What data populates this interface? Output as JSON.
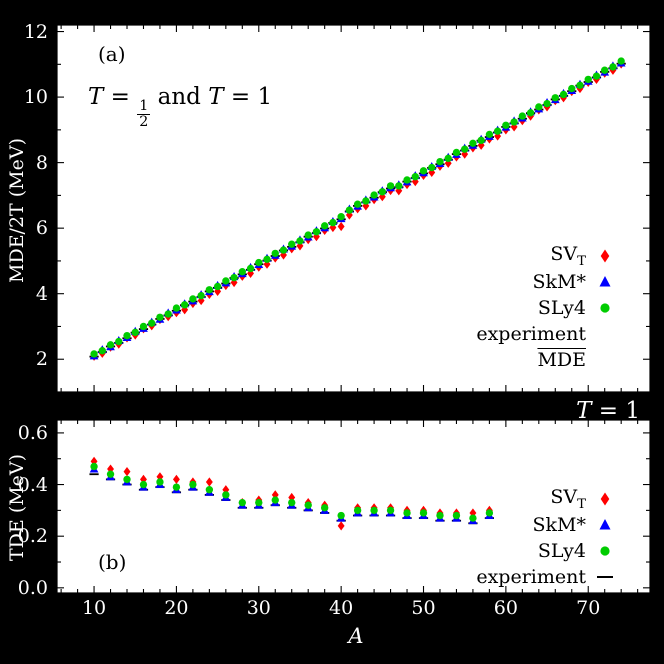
{
  "figure": {
    "panel_a_tag": "(a)",
    "panel_b_tag": "(b)",
    "title_a": {
      "t": "T",
      "eq": "=",
      "num": "1",
      "den": "2",
      "and": "and",
      "one": "1"
    },
    "title_b": {
      "t": "T",
      "rest": " = 1"
    },
    "ylabel_a": "MDE/2T (MeV)",
    "ylabel_b": "TDE (MeV)",
    "xlabel": "A",
    "colors": {
      "svt": "#ff0000",
      "skm": "#0000ff",
      "sly4": "#00cc00",
      "experiment": "#000000",
      "background": "#000000",
      "panel": "#ffffff"
    },
    "legend_a": {
      "items": [
        {
          "text": "SV",
          "sub": "T",
          "marker": "diamond",
          "color": "#ff0000"
        },
        {
          "text": "SkM*",
          "marker": "triangle",
          "color": "#0000ff"
        },
        {
          "text": "SLy4",
          "marker": "circle",
          "color": "#00cc00"
        },
        {
          "text": "experiment",
          "marker": "none"
        },
        {
          "text": "MDE",
          "overline": true,
          "marker": "none"
        }
      ]
    },
    "legend_b": {
      "items": [
        {
          "text": "SV",
          "sub": "T",
          "marker": "diamond",
          "color": "#ff0000"
        },
        {
          "text": "SkM*",
          "marker": "triangle",
          "color": "#0000ff"
        },
        {
          "text": "SLy4",
          "marker": "circle",
          "color": "#00cc00"
        },
        {
          "text": "experiment",
          "marker": "hline",
          "color": "#000000"
        }
      ]
    }
  },
  "chart_data": [
    {
      "type": "scatter",
      "title": "T = 1/2 and T = 1",
      "xlabel": "A",
      "ylabel": "MDE/2T (MeV)",
      "xlim": [
        5.5,
        77.5
      ],
      "ylim": [
        1.0,
        12.2
      ],
      "xticks": [
        10,
        20,
        30,
        40,
        50,
        60,
        70
      ],
      "xtick_labels": [],
      "xminor": [
        6,
        8,
        12,
        14,
        16,
        18,
        22,
        24,
        26,
        28,
        32,
        34,
        36,
        38,
        42,
        44,
        46,
        48,
        52,
        54,
        56,
        58,
        62,
        64,
        66,
        68,
        72,
        74,
        76
      ],
      "yticks": [
        2,
        4,
        6,
        8,
        10,
        12
      ],
      "ytick_labels": [
        "2",
        "4",
        "6",
        "8",
        "10",
        "12"
      ],
      "yminor": [
        3,
        5,
        7,
        9,
        11
      ],
      "x": [
        10,
        11,
        12,
        13,
        14,
        15,
        16,
        17,
        18,
        19,
        20,
        21,
        22,
        23,
        24,
        25,
        26,
        27,
        28,
        29,
        30,
        31,
        32,
        33,
        34,
        35,
        36,
        37,
        38,
        39,
        40,
        41,
        42,
        43,
        44,
        45,
        46,
        47,
        48,
        49,
        50,
        51,
        52,
        53,
        54,
        55,
        56,
        57,
        58,
        59,
        60,
        61,
        62,
        63,
        64,
        65,
        66,
        67,
        68,
        69,
        70,
        71,
        72,
        73,
        74
      ],
      "series": [
        {
          "name": "SV_T",
          "marker": "diamond",
          "color": "#ff0000",
          "values": [
            2.09,
            2.18,
            2.37,
            2.46,
            2.65,
            2.74,
            2.93,
            3.02,
            3.21,
            3.3,
            3.42,
            3.51,
            3.7,
            3.79,
            3.98,
            4.07,
            4.25,
            4.34,
            4.53,
            4.62,
            4.81,
            4.9,
            5.09,
            5.18,
            5.37,
            5.46,
            5.65,
            5.74,
            5.93,
            6.02,
            6.05,
            6.4,
            6.59,
            6.68,
            6.87,
            6.96,
            7.15,
            7.14,
            7.33,
            7.42,
            7.61,
            7.7,
            7.89,
            7.98,
            8.17,
            8.26,
            8.45,
            8.53,
            8.72,
            8.81,
            9.0,
            9.09,
            9.28,
            9.42,
            9.61,
            9.7,
            9.89,
            9.98,
            10.17,
            10.26,
            10.45,
            10.54,
            10.73,
            10.82,
            11.01
          ]
        },
        {
          "name": "SkM*",
          "marker": "triangle",
          "color": "#0000ff",
          "values": [
            2.1,
            2.29,
            2.38,
            2.57,
            2.66,
            2.85,
            2.94,
            3.13,
            3.22,
            3.41,
            3.5,
            3.69,
            3.78,
            3.97,
            4.06,
            4.25,
            4.33,
            4.52,
            4.61,
            4.8,
            4.89,
            5.08,
            5.17,
            5.36,
            5.45,
            5.64,
            5.73,
            5.92,
            6.01,
            6.2,
            6.29,
            6.58,
            6.67,
            6.86,
            6.95,
            7.14,
            7.23,
            7.32,
            7.41,
            7.6,
            7.69,
            7.88,
            7.97,
            8.16,
            8.25,
            8.44,
            8.53,
            8.71,
            8.8,
            8.99,
            9.08,
            9.27,
            9.36,
            9.55,
            9.64,
            9.83,
            9.92,
            10.11,
            10.2,
            10.39,
            10.48,
            10.67,
            10.76,
            10.95,
            11.04
          ]
        },
        {
          "name": "SLy4",
          "marker": "circle",
          "color": "#00cc00",
          "values": [
            2.16,
            2.26,
            2.44,
            2.54,
            2.72,
            2.82,
            3.0,
            3.1,
            3.28,
            3.38,
            3.56,
            3.66,
            3.84,
            3.94,
            4.12,
            4.22,
            4.39,
            4.49,
            4.67,
            4.77,
            4.95,
            5.05,
            5.23,
            5.33,
            5.51,
            5.61,
            5.79,
            5.89,
            6.07,
            6.17,
            6.35,
            6.55,
            6.73,
            6.83,
            7.01,
            7.11,
            7.29,
            7.29,
            7.47,
            7.57,
            7.75,
            7.85,
            8.03,
            8.13,
            8.31,
            8.41,
            8.59,
            8.68,
            8.86,
            8.96,
            9.14,
            9.24,
            9.42,
            9.52,
            9.7,
            9.8,
            9.98,
            10.08,
            10.26,
            10.36,
            10.54,
            10.64,
            10.82,
            10.92,
            11.1
          ]
        },
        {
          "name": "experiment",
          "marker": "hline",
          "color": "#000000",
          "values": [
            2.08,
            2.22,
            2.39,
            2.5,
            2.64,
            2.81,
            2.92,
            3.06,
            3.23,
            3.34,
            3.48,
            3.65,
            3.76,
            3.9,
            4.07,
            4.18,
            4.31,
            4.48,
            4.59,
            4.73,
            4.9,
            5.01,
            5.15,
            5.32,
            5.43,
            5.57,
            5.74,
            5.85,
            5.99,
            6.16,
            6.27,
            6.51,
            6.68,
            6.79,
            6.93,
            7.1,
            7.21,
            7.25,
            7.42,
            7.53,
            7.67,
            7.84,
            7.95,
            8.09,
            8.26,
            8.37,
            8.51,
            8.67,
            8.78,
            8.92,
            9.09,
            9.2,
            9.34,
            9.51,
            9.62,
            9.76,
            9.93,
            10.04,
            10.18,
            10.35,
            10.46,
            10.6,
            10.77,
            10.88,
            11.02
          ]
        }
      ]
    },
    {
      "type": "scatter",
      "title": "T = 1",
      "xlabel": "A",
      "ylabel": "TDE (MeV)",
      "xlim": [
        5.5,
        77.5
      ],
      "ylim": [
        -0.02,
        0.65
      ],
      "xticks": [
        10,
        20,
        30,
        40,
        50,
        60,
        70
      ],
      "xtick_labels": [
        "10",
        "20",
        "30",
        "40",
        "50",
        "60",
        "70"
      ],
      "xminor": [
        6,
        8,
        12,
        14,
        16,
        18,
        22,
        24,
        26,
        28,
        32,
        34,
        36,
        38,
        42,
        44,
        46,
        48,
        52,
        54,
        56,
        58,
        62,
        64,
        66,
        68,
        72,
        74,
        76
      ],
      "yticks": [
        0.0,
        0.2,
        0.4,
        0.6
      ],
      "ytick_labels": [
        "0.0",
        "0.2",
        "0.4",
        "0.6"
      ],
      "yminor": [
        0.1,
        0.3,
        0.5
      ],
      "x": [
        10,
        12,
        14,
        16,
        18,
        20,
        22,
        24,
        26,
        28,
        30,
        32,
        34,
        36,
        38,
        40,
        42,
        44,
        46,
        48,
        50,
        52,
        54,
        56,
        58
      ],
      "series": [
        {
          "name": "SV_T",
          "marker": "diamond",
          "color": "#ff0000",
          "values": [
            0.49,
            0.46,
            0.45,
            0.42,
            0.43,
            0.42,
            0.41,
            0.41,
            0.38,
            0.33,
            0.34,
            0.36,
            0.35,
            0.33,
            0.32,
            0.24,
            0.31,
            0.31,
            0.31,
            0.3,
            0.3,
            0.29,
            0.29,
            0.29,
            0.3
          ]
        },
        {
          "name": "SkM*",
          "marker": "triangle",
          "color": "#0000ff",
          "values": [
            0.46,
            0.43,
            0.41,
            0.39,
            0.4,
            0.38,
            0.39,
            0.37,
            0.35,
            0.32,
            0.32,
            0.33,
            0.32,
            0.31,
            0.3,
            0.27,
            0.29,
            0.29,
            0.29,
            0.28,
            0.28,
            0.27,
            0.27,
            0.26,
            0.28
          ]
        },
        {
          "name": "SLy4",
          "marker": "circle",
          "color": "#00cc00",
          "values": [
            0.47,
            0.44,
            0.42,
            0.4,
            0.41,
            0.39,
            0.4,
            0.38,
            0.36,
            0.33,
            0.33,
            0.34,
            0.33,
            0.32,
            0.31,
            0.28,
            0.3,
            0.3,
            0.3,
            0.29,
            0.29,
            0.28,
            0.28,
            0.27,
            0.29
          ]
        },
        {
          "name": "experiment",
          "marker": "hline",
          "color": "#000000",
          "values": [
            0.44,
            0.42,
            0.4,
            0.38,
            0.39,
            0.37,
            0.38,
            0.36,
            0.34,
            0.31,
            0.31,
            0.32,
            0.31,
            0.3,
            0.29,
            0.26,
            0.28,
            0.28,
            0.28,
            0.27,
            0.27,
            0.26,
            0.26,
            0.25,
            0.27
          ]
        }
      ]
    }
  ]
}
